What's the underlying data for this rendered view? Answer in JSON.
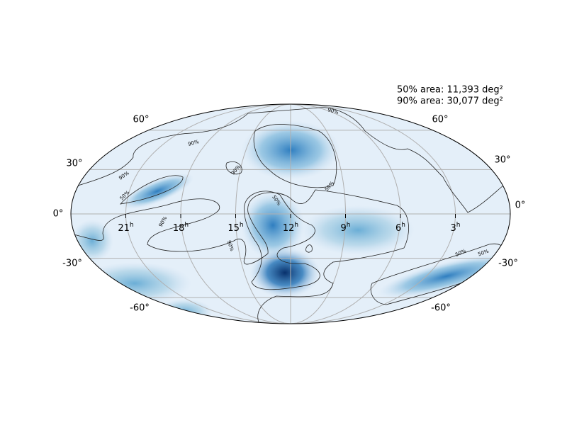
{
  "annotations": [
    "50% area: 11,393 deg²",
    "90% area: 30,077 deg²"
  ],
  "ra_labels": [
    {
      "hours": "21",
      "unit": "h"
    },
    {
      "hours": "18",
      "unit": "h"
    },
    {
      "hours": "15",
      "unit": "h"
    },
    {
      "hours": "12",
      "unit": "h"
    },
    {
      "hours": "9",
      "unit": "h"
    },
    {
      "hours": "6",
      "unit": "h"
    },
    {
      "hours": "3",
      "unit": "h"
    }
  ],
  "dec_labels_left": [
    "60°",
    "30°",
    "0°",
    "-30°",
    "-60°"
  ],
  "dec_labels_right": [
    "60°",
    "30°",
    "0°",
    "-30°",
    "-60°"
  ],
  "contour_labels": [
    "90%",
    "90%",
    "90%",
    "90%",
    "90%",
    "90%",
    "50%",
    "50%",
    "50%",
    "50%",
    "50%"
  ]
}
